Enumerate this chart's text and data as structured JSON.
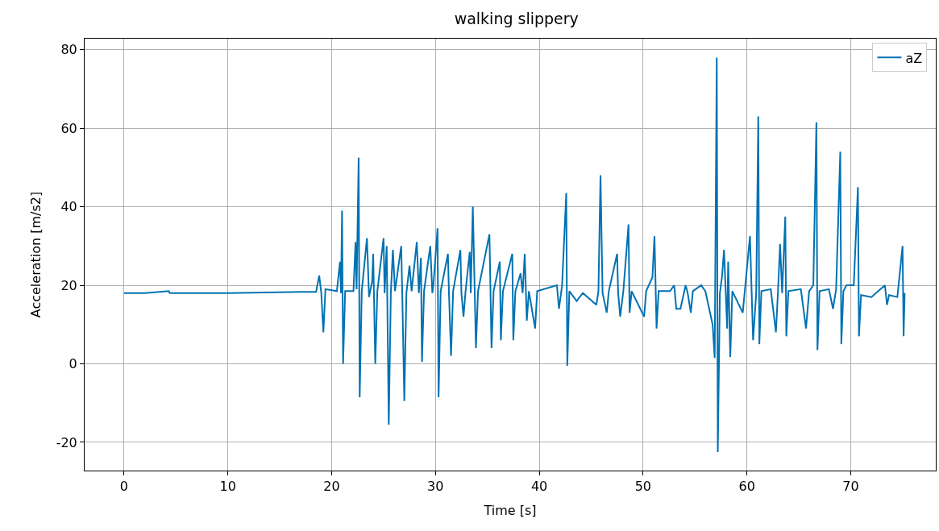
{
  "chart_data": {
    "type": "line",
    "title": "walking slippery",
    "xlabel": "Time [s]",
    "ylabel": "Acceleration [m/s2]",
    "x": [
      0,
      2,
      4.3,
      4.4,
      10,
      17,
      18.5,
      18.8,
      19.0,
      19.2,
      19.4,
      20.5,
      20.8,
      20.9,
      21.0,
      21.1,
      21.3,
      22.1,
      22.3,
      22.4,
      22.6,
      22.7,
      22.9,
      23.4,
      23.6,
      23.9,
      24.0,
      24.2,
      24.4,
      25.0,
      25.1,
      25.3,
      25.5,
      25.7,
      25.9,
      26.1,
      26.7,
      26.8,
      27.0,
      27.2,
      27.5,
      27.7,
      28.2,
      28.4,
      28.6,
      28.7,
      28.9,
      29.5,
      29.7,
      29.8,
      30.2,
      30.3,
      30.5,
      31.2,
      31.3,
      31.5,
      31.7,
      32.4,
      32.5,
      32.7,
      32.9,
      33.3,
      33.4,
      33.6,
      33.9,
      34.1,
      35.2,
      35.4,
      35.6,
      36.2,
      36.3,
      36.5,
      37.4,
      37.5,
      37.7,
      38.2,
      38.4,
      38.6,
      38.8,
      39.0,
      39.6,
      39.8,
      41.7,
      41.9,
      42.2,
      42.6,
      42.7,
      42.9,
      43.6,
      44.2,
      45.5,
      45.7,
      45.9,
      46.1,
      46.5,
      46.7,
      47.5,
      47.6,
      47.8,
      48.1,
      48.6,
      48.7,
      48.9,
      50.1,
      50.3,
      50.9,
      51.1,
      51.3,
      51.5,
      52.6,
      53.0,
      53.2,
      53.6,
      54.1,
      54.3,
      54.6,
      54.8,
      55.6,
      56.0,
      56.7,
      56.9,
      57.1,
      57.2,
      57.4,
      57.6,
      57.8,
      58.1,
      58.2,
      58.4,
      58.6,
      59.6,
      59.8,
      60.3,
      60.6,
      60.9,
      61.1,
      61.2,
      61.4,
      62.3,
      62.8,
      63.0,
      63.2,
      63.4,
      63.7,
      63.8,
      64.0,
      65.2,
      65.7,
      66.0,
      66.4,
      66.7,
      66.8,
      67.0,
      67.9,
      68.3,
      68.6,
      69.0,
      69.1,
      69.3,
      69.6,
      70.3,
      70.7,
      70.8,
      71.0,
      72,
      73.3,
      73.5,
      73.7,
      74.5,
      75.0,
      75.1,
      75.2
    ],
    "series": [
      {
        "name": "aZ",
        "color": "#0072b2",
        "values": [
          18,
          18,
          18.5,
          18,
          18,
          18.3,
          18.3,
          22.5,
          18,
          8,
          19,
          18.5,
          26,
          18,
          39,
          0,
          18.5,
          18.5,
          31,
          19,
          52.5,
          -8.5,
          18.5,
          32,
          17,
          21,
          28,
          0,
          18.5,
          32,
          18,
          30,
          -15.5,
          18,
          29,
          18.5,
          30,
          18,
          -9.5,
          18,
          25,
          18.5,
          31,
          18,
          27,
          0.5,
          18.5,
          30,
          18,
          20,
          34.5,
          -8.5,
          18.5,
          28,
          18,
          2,
          18.5,
          29,
          18,
          12,
          18.5,
          28.5,
          18,
          40,
          4,
          18.5,
          33,
          4,
          18.5,
          26,
          6,
          18.5,
          28,
          6,
          18.5,
          23,
          18,
          28,
          11,
          18.5,
          9,
          18.5,
          20,
          14,
          20,
          43.5,
          -0.5,
          18.5,
          16,
          18,
          15,
          18.5,
          48,
          18,
          13,
          18.5,
          28,
          18,
          12,
          18.5,
          35.5,
          13,
          18.5,
          12,
          18.5,
          22,
          32.5,
          9,
          18.5,
          18.5,
          20,
          14,
          14,
          20,
          18,
          13,
          18.5,
          20,
          18.5,
          10,
          1.5,
          78,
          -22.5,
          18,
          22,
          29,
          9,
          26,
          1.7,
          18.5,
          13,
          18.5,
          32.5,
          6,
          18,
          63,
          5,
          18.5,
          19,
          8,
          18.5,
          30.5,
          18,
          37.5,
          7,
          18.5,
          19,
          9,
          18.5,
          20,
          61.5,
          3.5,
          18.5,
          19,
          14,
          19,
          54,
          5,
          18.5,
          20,
          20,
          45,
          7,
          17.5,
          17,
          20,
          15,
          17.5,
          17,
          30,
          7,
          18
        ]
      }
    ],
    "xlim": [
      -3.8,
      78.2
    ],
    "ylim": [
      -27.2,
      82.8
    ],
    "xticks": [
      0,
      10,
      20,
      30,
      40,
      50,
      60,
      70
    ],
    "yticks": [
      -20,
      0,
      20,
      40,
      60,
      80
    ],
    "grid": true,
    "legend": "top right",
    "marker": "none",
    "line_style": "solid"
  }
}
